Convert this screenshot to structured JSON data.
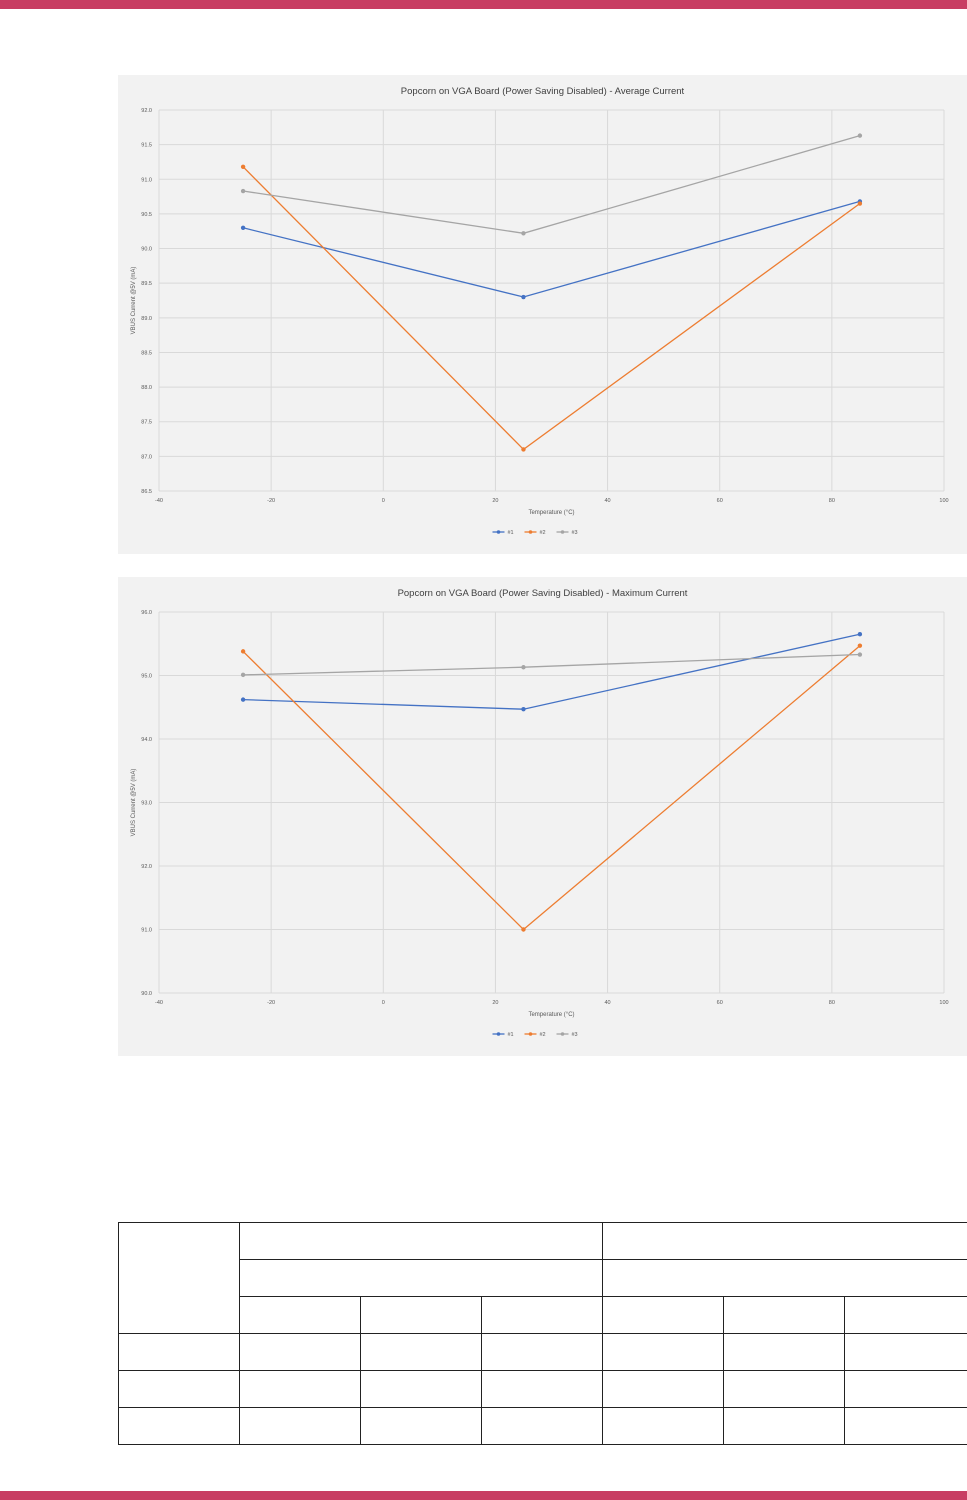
{
  "colors": {
    "accent": "#c83e63",
    "series": [
      "#4472c4",
      "#ed7d31",
      "#a5a5a5"
    ]
  },
  "chart_data": [
    {
      "type": "line",
      "title": "Popcorn on VGA Board (Power Saving Disabled) - Average Current",
      "xlabel": "Temperature (°C)",
      "ylabel": "VBUS Current @5V (mA)",
      "xlim": [
        -40,
        100
      ],
      "ylim": [
        86.5,
        92.0
      ],
      "xticks": [
        "-40",
        "-20",
        "0",
        "20",
        "40",
        "60",
        "80",
        "100"
      ],
      "yticks": [
        "86.5",
        "87.0",
        "87.5",
        "88.0",
        "88.5",
        "89.0",
        "89.5",
        "90.0",
        "90.5",
        "91.0",
        "91.5",
        "92.0"
      ],
      "grid": true,
      "legend_position": "bottom",
      "x": [
        -25,
        25,
        85
      ],
      "series": [
        {
          "name": "#1",
          "values": [
            90.3,
            89.3,
            90.68
          ]
        },
        {
          "name": "#2",
          "values": [
            91.18,
            87.1,
            90.65
          ]
        },
        {
          "name": "#3",
          "values": [
            90.83,
            90.22,
            91.63
          ]
        }
      ]
    },
    {
      "type": "line",
      "title": "Popcorn on VGA Board (Power Saving Disabled) - Maximum Current",
      "xlabel": "Temperature (°C)",
      "ylabel": "VBUS Current @5V (mA)",
      "xlim": [
        -40,
        100
      ],
      "ylim": [
        90.0,
        96.0
      ],
      "xticks": [
        "-40",
        "-20",
        "0",
        "20",
        "40",
        "60",
        "80",
        "100"
      ],
      "yticks": [
        "90.0",
        "91.0",
        "92.0",
        "93.0",
        "94.0",
        "95.0",
        "96.0"
      ],
      "grid": true,
      "legend_position": "bottom",
      "x": [
        -25,
        25,
        85
      ],
      "series": [
        {
          "name": "#1",
          "values": [
            94.62,
            94.47,
            95.65
          ]
        },
        {
          "name": "#2",
          "values": [
            95.38,
            91.0,
            95.47
          ]
        },
        {
          "name": "#3",
          "values": [
            95.01,
            95.13,
            95.33
          ]
        }
      ]
    }
  ]
}
